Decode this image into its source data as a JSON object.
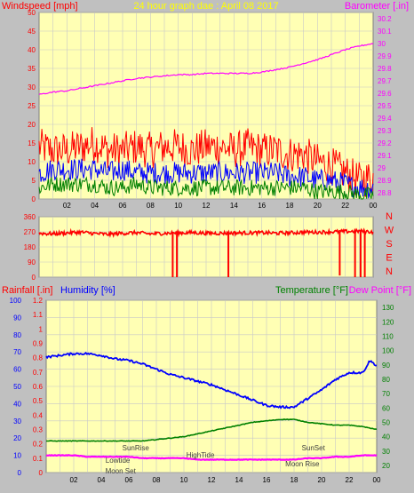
{
  "header": {
    "wind_label": "Windspeed [mph]",
    "title": "24 hour graph dae : April 08 2017",
    "baro_label": "Barometer [.in]"
  },
  "lower_header": {
    "rain_label": "Rainfall [.in]",
    "humidity_label": "Humidity [%]",
    "temperature_label": "Temperature [°F]",
    "dewpoint_label": "Dew Point [°F]"
  },
  "colors": {
    "background": "#c0c0c0",
    "plot_bg": "#ffffb4",
    "wind_gust": "#ff0000",
    "wind_avg": "#0000ff",
    "wind_low": "#008000",
    "barometer": "#ff00ff",
    "direction": "#ff0000",
    "humidity": "#0000ff",
    "temperature": "#008000",
    "dewpoint": "#ff00ff"
  },
  "chart_data": [
    {
      "type": "line",
      "name": "wind_barometer",
      "title": "24 hour graph dae : April 08 2017",
      "ylabel": "Windspeed [mph]",
      "ylabel_right": "Barometer [.in]",
      "x_ticks": [
        "02",
        "04",
        "06",
        "08",
        "10",
        "12",
        "14",
        "16",
        "18",
        "20",
        "22",
        "00"
      ],
      "y_left_ticks": [
        "0",
        "5",
        "10",
        "15",
        "20",
        "25",
        "30",
        "35",
        "40",
        "45",
        "50"
      ],
      "y_right_ticks": [
        "28.8",
        "28.9",
        "29",
        "29.1",
        "29.2",
        "29.3",
        "29.4",
        "29.5",
        "29.6",
        "29.7",
        "29.8",
        "29.9",
        "30",
        "30.1",
        "30.2"
      ],
      "ylim_left": [
        0,
        50
      ],
      "ylim_right": [
        28.75,
        30.25
      ],
      "xlim": [
        0,
        24
      ],
      "series": [
        {
          "key": "gust",
          "x": [
            0,
            1,
            2,
            3,
            4,
            5,
            6,
            7,
            8,
            9,
            10,
            11,
            12,
            13,
            14,
            15,
            16,
            17,
            18,
            19,
            20,
            21,
            22,
            23,
            24
          ],
          "values": [
            14,
            13,
            13,
            14,
            15,
            13,
            13,
            14,
            13,
            14,
            14,
            13,
            14,
            14,
            13,
            14,
            13,
            13,
            12,
            12,
            10,
            9,
            7,
            5,
            6
          ]
        },
        {
          "key": "avg",
          "x": [
            0,
            1,
            2,
            3,
            4,
            5,
            6,
            7,
            8,
            9,
            10,
            11,
            12,
            13,
            14,
            15,
            16,
            17,
            18,
            19,
            20,
            21,
            22,
            23,
            24
          ],
          "values": [
            7,
            8,
            8,
            8,
            8,
            7,
            8,
            7,
            7,
            7,
            7,
            7,
            7,
            7,
            7,
            7,
            7,
            7,
            6,
            6,
            5,
            5,
            4,
            3,
            3
          ]
        },
        {
          "key": "low",
          "x": [
            0,
            1,
            2,
            3,
            4,
            5,
            6,
            7,
            8,
            9,
            10,
            11,
            12,
            13,
            14,
            15,
            16,
            17,
            18,
            19,
            20,
            21,
            22,
            23,
            24
          ],
          "values": [
            3,
            4,
            4,
            4,
            4,
            3,
            3,
            4,
            3,
            3,
            3,
            3,
            3,
            3,
            3,
            3,
            3,
            3,
            3,
            3,
            2,
            2,
            2,
            1,
            1
          ]
        },
        {
          "key": "barometer",
          "axis": "right",
          "x": [
            0,
            1,
            2,
            3,
            4,
            5,
            6,
            7,
            8,
            9,
            10,
            11,
            12,
            13,
            14,
            15,
            16,
            17,
            18,
            19,
            20,
            21,
            22,
            23,
            24
          ],
          "values": [
            29.59,
            29.61,
            29.62,
            29.64,
            29.66,
            29.68,
            29.7,
            29.72,
            29.73,
            29.74,
            29.75,
            29.75,
            29.76,
            29.76,
            29.76,
            29.76,
            29.77,
            29.79,
            29.81,
            29.84,
            29.87,
            29.91,
            29.95,
            29.98,
            30.0
          ]
        }
      ]
    },
    {
      "type": "line",
      "name": "wind_direction",
      "y_ticks": [
        "360",
        "270",
        "180",
        "90",
        "0"
      ],
      "ylim": [
        0,
        360
      ],
      "xlim": [
        0,
        24
      ],
      "compass_labels": [
        "N",
        "W",
        "S",
        "E",
        "N"
      ],
      "series": [
        {
          "key": "direction",
          "x": [
            0,
            1,
            2,
            3,
            4,
            5,
            6,
            7,
            8,
            9,
            10,
            11,
            12,
            13,
            14,
            15,
            16,
            17,
            18,
            19,
            20,
            21,
            22,
            23,
            24
          ],
          "values": [
            262,
            258,
            264,
            268,
            260,
            255,
            262,
            265,
            258,
            262,
            263,
            266,
            262,
            262,
            263,
            264,
            265,
            262,
            264,
            268,
            268,
            270,
            272,
            274,
            270
          ]
        }
      ],
      "dips": [
        {
          "x": 9.6,
          "to": 0
        },
        {
          "x": 9.9,
          "to": 0
        },
        {
          "x": 13.6,
          "to": 0
        },
        {
          "x": 21.6,
          "to": 10
        },
        {
          "x": 22.7,
          "to": 0
        },
        {
          "x": 23.1,
          "to": 0
        },
        {
          "x": 23.4,
          "to": 0
        }
      ]
    },
    {
      "type": "line",
      "name": "humidity_temp",
      "x_ticks": [
        "02",
        "04",
        "06",
        "08",
        "10",
        "12",
        "14",
        "16",
        "18",
        "20",
        "22",
        "00"
      ],
      "y_humidity_ticks": [
        "0",
        "10",
        "20",
        "30",
        "40",
        "50",
        "60",
        "70",
        "80",
        "90",
        "100"
      ],
      "y_rain_ticks": [
        "0",
        "0.1",
        "0.2",
        "0.3",
        "0.4",
        "0.5",
        "0.6",
        "0.7",
        "0.8",
        "0.9",
        "1",
        "1.1",
        "1.2"
      ],
      "y_temp_ticks": [
        "20",
        "30",
        "40",
        "50",
        "60",
        "70",
        "80",
        "90",
        "100",
        "110",
        "120",
        "130"
      ],
      "ylim_humidity": [
        0,
        100
      ],
      "ylim_rain": [
        0,
        1.2
      ],
      "ylim_temp": [
        15,
        135
      ],
      "xlim": [
        0,
        24
      ],
      "series": [
        {
          "key": "humidity",
          "x": [
            0,
            1,
            2,
            3,
            4,
            5,
            6,
            7,
            8,
            9,
            10,
            11,
            12,
            13,
            14,
            15,
            16,
            17,
            18,
            19,
            20,
            21,
            22,
            23,
            23.5,
            24
          ],
          "values": [
            67,
            68,
            69,
            69,
            68,
            66,
            65,
            63,
            60,
            57,
            55,
            53,
            51,
            48,
            45,
            42,
            39,
            38,
            38,
            43,
            48,
            54,
            58,
            58,
            65,
            62
          ]
        },
        {
          "key": "temperature",
          "x": [
            0,
            1,
            2,
            3,
            4,
            5,
            6,
            7,
            8,
            9,
            10,
            11,
            12,
            13,
            14,
            15,
            16,
            17,
            18,
            19,
            20,
            21,
            22,
            23,
            24
          ],
          "values": [
            37,
            37,
            37,
            37,
            37,
            37,
            37,
            37,
            38,
            39,
            40,
            42,
            44,
            46,
            48,
            50,
            51,
            52,
            52,
            50,
            49,
            48,
            48,
            47,
            45
          ]
        },
        {
          "key": "dewpoint",
          "x": [
            0,
            1,
            2,
            3,
            4,
            5,
            6,
            7,
            8,
            9,
            10,
            11,
            12,
            13,
            14,
            15,
            16,
            17,
            18,
            19,
            20,
            21,
            22,
            23,
            24
          ],
          "values": [
            27,
            27,
            27,
            26,
            26,
            26,
            26,
            25,
            25,
            25,
            25,
            24,
            24,
            24,
            24,
            24,
            24,
            24,
            24,
            25,
            25,
            26,
            26,
            27,
            27
          ]
        }
      ],
      "annotations": [
        {
          "text": "SunRise",
          "x": 6.5
        },
        {
          "text": "Lowtide",
          "x": 5.2
        },
        {
          "text": "Moon Set",
          "x": 5.4
        },
        {
          "text": "HighTide",
          "x": 11.2
        },
        {
          "text": "SunSet",
          "x": 19.4
        },
        {
          "text": "Moon Rise",
          "x": 18.6
        }
      ]
    }
  ]
}
